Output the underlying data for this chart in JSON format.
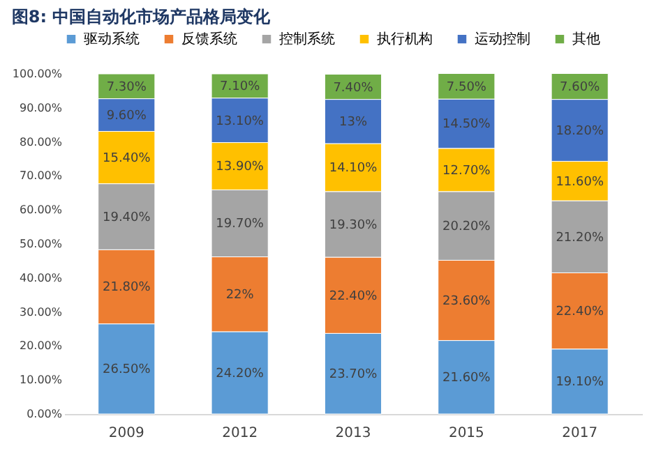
{
  "chart_data": {
    "type": "bar",
    "stacked": true,
    "title": "图8:  中国自动化市场产品格局变化",
    "categories": [
      "2009",
      "2012",
      "2013",
      "2015",
      "2017"
    ],
    "series": [
      {
        "name": "驱动系统",
        "color": "#5b9bd5",
        "values": [
          26.5,
          24.2,
          23.7,
          21.6,
          19.1
        ],
        "value_labels": [
          "26.50%",
          "24.20%",
          "23.70%",
          "21.60%",
          "19.10%"
        ]
      },
      {
        "name": "反馈系统",
        "color": "#ed7d31",
        "values": [
          21.8,
          22,
          22.4,
          23.6,
          22.4
        ],
        "value_labels": [
          "21.80%",
          "22%",
          "22.40%",
          "23.60%",
          "22.40%"
        ]
      },
      {
        "name": "控制系统",
        "color": "#a5a5a5",
        "values": [
          19.4,
          19.7,
          19.3,
          20.2,
          21.2
        ],
        "value_labels": [
          "19.40%",
          "19.70%",
          "19.30%",
          "20.20%",
          "21.20%"
        ]
      },
      {
        "name": "执行机构",
        "color": "#ffc000",
        "values": [
          15.4,
          13.9,
          14.1,
          12.7,
          11.6
        ],
        "value_labels": [
          "15.40%",
          "13.90%",
          "14.10%",
          "12.70%",
          "11.60%"
        ]
      },
      {
        "name": "运动控制",
        "color": "#4472c4",
        "values": [
          9.6,
          13.1,
          13,
          14.5,
          18.2
        ],
        "value_labels": [
          "9.60%",
          "13.10%",
          "13%",
          "14.50%",
          "18.20%"
        ]
      },
      {
        "name": "其他",
        "color": "#70ad47",
        "values": [
          7.3,
          7.1,
          7.4,
          7.5,
          7.6
        ],
        "value_labels": [
          "7.30%",
          "7.10%",
          "7.40%",
          "7.50%",
          "7.60%"
        ]
      }
    ],
    "ylim": [
      0,
      100
    ],
    "yticks": [
      {
        "value": 0,
        "label": "0.00%"
      },
      {
        "value": 10,
        "label": "10.00%"
      },
      {
        "value": 20,
        "label": "20.00%"
      },
      {
        "value": 30,
        "label": "30.00%"
      },
      {
        "value": 40,
        "label": "40.00%"
      },
      {
        "value": 50,
        "label": "50.00%"
      },
      {
        "value": 60,
        "label": "60.00%"
      },
      {
        "value": 70,
        "label": "70.00%"
      },
      {
        "value": 80,
        "label": "80.00%"
      },
      {
        "value": 90,
        "label": "90.00%"
      },
      {
        "value": 100,
        "label": "100.00%"
      }
    ],
    "grid": false,
    "legend": "top"
  }
}
